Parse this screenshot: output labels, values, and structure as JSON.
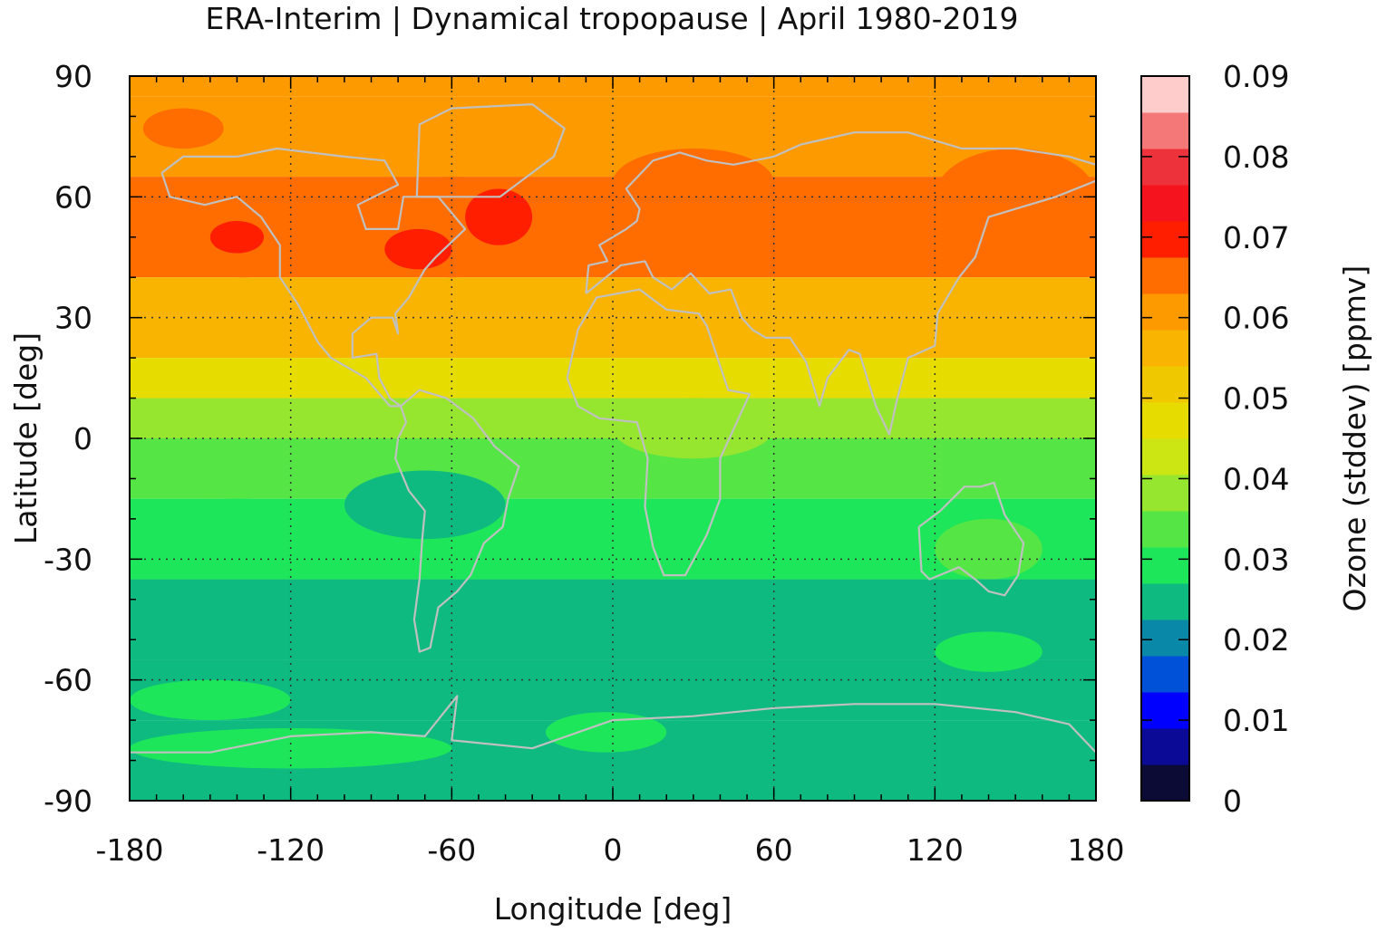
{
  "chart_data": {
    "type": "heatmap",
    "title": "ERA-Interim | Dynamical tropopause | April 1980-2019",
    "xlabel": "Longitude [deg]",
    "ylabel": "Latitude [deg]",
    "colorbar_label": "Ozone (stddev) [ppmv]",
    "xlim": [
      -180,
      180
    ],
    "ylim": [
      -90,
      90
    ],
    "x_ticks": [
      "-180",
      "-120",
      "-60",
      "0",
      "60",
      "120",
      "180"
    ],
    "y_ticks": [
      "90",
      "60",
      "30",
      "0",
      "-30",
      "-60",
      "-90"
    ],
    "colorbar_ticks": [
      "0.09",
      "0.08",
      "0.07",
      "0.06",
      "0.05",
      "0.04",
      "0.03",
      "0.02",
      "0.01",
      "0"
    ],
    "colorbar_range": [
      0,
      0.09
    ],
    "grid": "dotted",
    "levels": [
      {
        "from": 0.0,
        "to": 0.0045,
        "color": "#0b0b35"
      },
      {
        "from": 0.0045,
        "to": 0.009,
        "color": "#0a0a96"
      },
      {
        "from": 0.009,
        "to": 0.0135,
        "color": "#0000ff"
      },
      {
        "from": 0.0135,
        "to": 0.018,
        "color": "#0050d8"
      },
      {
        "from": 0.018,
        "to": 0.0225,
        "color": "#0a88a8"
      },
      {
        "from": 0.0225,
        "to": 0.027,
        "color": "#0eba80"
      },
      {
        "from": 0.027,
        "to": 0.0315,
        "color": "#1ee65a"
      },
      {
        "from": 0.0315,
        "to": 0.036,
        "color": "#55e645"
      },
      {
        "from": 0.036,
        "to": 0.0405,
        "color": "#96e630"
      },
      {
        "from": 0.0405,
        "to": 0.045,
        "color": "#cce614"
      },
      {
        "from": 0.045,
        "to": 0.0495,
        "color": "#e6dc00"
      },
      {
        "from": 0.0495,
        "to": 0.054,
        "color": "#f0c800"
      },
      {
        "from": 0.054,
        "to": 0.0585,
        "color": "#f8b400"
      },
      {
        "from": 0.0585,
        "to": 0.063,
        "color": "#fd9a00"
      },
      {
        "from": 0.063,
        "to": 0.0675,
        "color": "#ff6c00"
      },
      {
        "from": 0.0675,
        "to": 0.072,
        "color": "#ff1e00"
      },
      {
        "from": 0.072,
        "to": 0.0765,
        "color": "#f5141e"
      },
      {
        "from": 0.0765,
        "to": 0.081,
        "color": "#ee323c"
      },
      {
        "from": 0.081,
        "to": 0.0855,
        "color": "#f57878"
      },
      {
        "from": 0.0855,
        "to": 0.09,
        "color": "#ffcccc"
      }
    ],
    "zonal_bands": [
      {
        "lat": [
          85,
          90
        ],
        "value": 0.062
      },
      {
        "lat": [
          65,
          85
        ],
        "value": 0.06
      },
      {
        "lat": [
          40,
          65
        ],
        "value": 0.064
      },
      {
        "lat": [
          30,
          40
        ],
        "value": 0.058
      },
      {
        "lat": [
          20,
          30
        ],
        "value": 0.055
      },
      {
        "lat": [
          10,
          20
        ],
        "value": 0.048
      },
      {
        "lat": [
          0,
          10
        ],
        "value": 0.04
      },
      {
        "lat": [
          -15,
          0
        ],
        "value": 0.034
      },
      {
        "lat": [
          -35,
          -15
        ],
        "value": 0.03
      },
      {
        "lat": [
          -55,
          -35
        ],
        "value": 0.026
      },
      {
        "lat": [
          -70,
          -55
        ],
        "value": 0.026
      },
      {
        "lat": [
          -90,
          -70
        ],
        "value": 0.026
      }
    ],
    "patches": [
      {
        "lon": [
          -155,
          -120
        ],
        "lat": [
          40,
          58
        ],
        "value": 0.066
      },
      {
        "lon": [
          -150,
          -130
        ],
        "lat": [
          46,
          54
        ],
        "value": 0.069
      },
      {
        "lon": [
          -100,
          -20
        ],
        "lat": [
          40,
          65
        ],
        "value": 0.066
      },
      {
        "lon": [
          -85,
          -60
        ],
        "lat": [
          42,
          52
        ],
        "value": 0.07
      },
      {
        "lon": [
          -55,
          -30
        ],
        "lat": [
          48,
          62
        ],
        "value": 0.07
      },
      {
        "lon": [
          0,
          60
        ],
        "lat": [
          55,
          72
        ],
        "value": 0.065
      },
      {
        "lon": [
          80,
          120
        ],
        "lat": [
          50,
          60
        ],
        "value": 0.065
      },
      {
        "lon": [
          120,
          180
        ],
        "lat": [
          48,
          72
        ],
        "value": 0.065
      },
      {
        "lon": [
          -175,
          -145
        ],
        "lat": [
          72,
          82
        ],
        "value": 0.065
      },
      {
        "lon": [
          -100,
          -40
        ],
        "lat": [
          -25,
          -8
        ],
        "value": 0.026
      },
      {
        "lon": [
          -180,
          -100
        ],
        "lat": [
          -30,
          -15
        ],
        "value": 0.031
      },
      {
        "lon": [
          -180,
          -120
        ],
        "lat": [
          -15,
          0
        ],
        "value": 0.032
      },
      {
        "lon": [
          0,
          60
        ],
        "lat": [
          -5,
          10
        ],
        "value": 0.036
      },
      {
        "lon": [
          120,
          160
        ],
        "lat": [
          -35,
          -20
        ],
        "value": 0.034
      },
      {
        "lon": [
          -180,
          -60
        ],
        "lat": [
          -82,
          -72
        ],
        "value": 0.03
      },
      {
        "lon": [
          -180,
          -120
        ],
        "lat": [
          -70,
          -60
        ],
        "value": 0.03
      },
      {
        "lon": [
          120,
          160
        ],
        "lat": [
          -58,
          -48
        ],
        "value": 0.03
      },
      {
        "lon": [
          -25,
          20
        ],
        "lat": [
          -78,
          -68
        ],
        "value": 0.03
      }
    ]
  }
}
